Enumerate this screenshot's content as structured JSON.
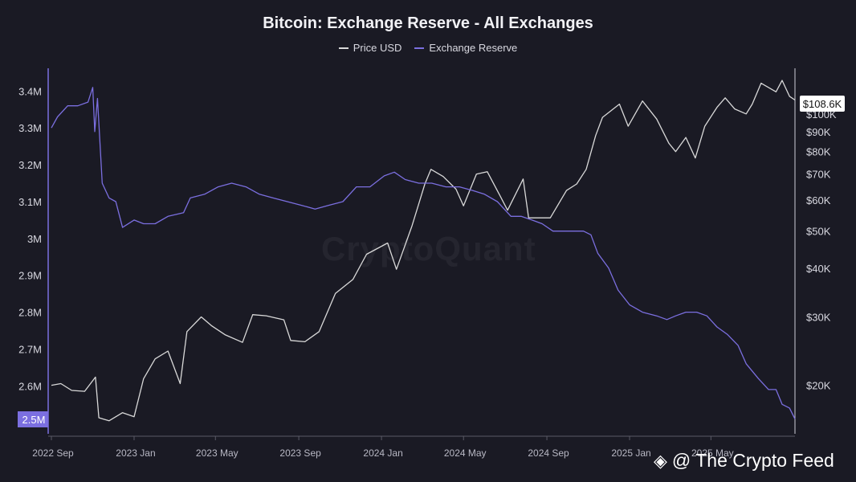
{
  "chart_data": {
    "type": "line",
    "title": "Bitcoin: Exchange Reserve - All Exchanges",
    "legend": {
      "placement": "top-center"
    },
    "colors": {
      "background": "#1a1a24",
      "price": "#d9d9d9",
      "reserve": "#7b6fe0"
    },
    "x_ticks": [
      "2022 Sep",
      "2023 Jan",
      "2023 May",
      "2023 Sep",
      "2024 Jan",
      "2024 May",
      "2024 Sep",
      "2025 Jan",
      "2025 May"
    ],
    "left_axis": {
      "ticks": [
        "3.4M",
        "3.3M",
        "3.2M",
        "3.1M",
        "3M",
        "2.9M",
        "2.8M",
        "2.7M",
        "2.6M"
      ],
      "range": [
        2.47,
        3.44
      ],
      "current_label": "2.5M"
    },
    "right_axis": {
      "scale": "log",
      "ticks": [
        "$100K",
        "$90K",
        "$80K",
        "$70K",
        "$60K",
        "$50K",
        "$40K",
        "$30K",
        "$20K"
      ],
      "range": [
        15000,
        125000
      ],
      "current_label": "$108.6K"
    },
    "series": [
      {
        "name": "Price USD",
        "axis": "right",
        "color": "#d9d9d9",
        "points": [
          [
            "2022-09-01",
            20000
          ],
          [
            "2022-09-15",
            20200
          ],
          [
            "2022-10-01",
            19400
          ],
          [
            "2022-10-20",
            19300
          ],
          [
            "2022-11-05",
            21000
          ],
          [
            "2022-11-10",
            16500
          ],
          [
            "2022-11-25",
            16200
          ],
          [
            "2022-12-15",
            17000
          ],
          [
            "2023-01-01",
            16600
          ],
          [
            "2023-01-15",
            20800
          ],
          [
            "2023-02-01",
            23400
          ],
          [
            "2023-02-20",
            24500
          ],
          [
            "2023-03-10",
            20200
          ],
          [
            "2023-03-20",
            27500
          ],
          [
            "2023-04-10",
            30000
          ],
          [
            "2023-04-25",
            28500
          ],
          [
            "2023-05-15",
            27000
          ],
          [
            "2023-06-10",
            25800
          ],
          [
            "2023-06-25",
            30400
          ],
          [
            "2023-07-15",
            30200
          ],
          [
            "2023-08-10",
            29500
          ],
          [
            "2023-08-20",
            26100
          ],
          [
            "2023-09-10",
            25900
          ],
          [
            "2023-10-01",
            27500
          ],
          [
            "2023-10-25",
            34500
          ],
          [
            "2023-11-20",
            37500
          ],
          [
            "2023-12-10",
            43500
          ],
          [
            "2024-01-10",
            46500
          ],
          [
            "2024-01-23",
            39800
          ],
          [
            "2024-02-15",
            51500
          ],
          [
            "2024-03-05",
            66000
          ],
          [
            "2024-03-14",
            72000
          ],
          [
            "2024-04-01",
            69000
          ],
          [
            "2024-04-20",
            64000
          ],
          [
            "2024-05-01",
            58000
          ],
          [
            "2024-05-20",
            70000
          ],
          [
            "2024-06-05",
            71000
          ],
          [
            "2024-06-25",
            61000
          ],
          [
            "2024-07-05",
            56500
          ],
          [
            "2024-07-28",
            68000
          ],
          [
            "2024-08-05",
            54000
          ],
          [
            "2024-09-06",
            54000
          ],
          [
            "2024-09-30",
            63500
          ],
          [
            "2024-10-15",
            66000
          ],
          [
            "2024-10-29",
            72000
          ],
          [
            "2024-11-12",
            88000
          ],
          [
            "2024-11-22",
            98000
          ],
          [
            "2024-12-17",
            106000
          ],
          [
            "2024-12-30",
            93000
          ],
          [
            "2025-01-20",
            108000
          ],
          [
            "2025-02-10",
            97000
          ],
          [
            "2025-02-28",
            84000
          ],
          [
            "2025-03-10",
            80000
          ],
          [
            "2025-03-25",
            87000
          ],
          [
            "2025-04-08",
            77000
          ],
          [
            "2025-04-22",
            93000
          ],
          [
            "2025-05-10",
            104000
          ],
          [
            "2025-05-22",
            110000
          ],
          [
            "2025-06-05",
            103000
          ],
          [
            "2025-06-22",
            100000
          ],
          [
            "2025-07-01",
            106000
          ],
          [
            "2025-07-14",
            120000
          ],
          [
            "2025-07-25",
            117000
          ],
          [
            "2025-08-05",
            114000
          ],
          [
            "2025-08-14",
            122000
          ],
          [
            "2025-08-25",
            111000
          ],
          [
            "2025-09-02",
            108600
          ]
        ]
      },
      {
        "name": "Exchange Reserve",
        "axis": "left",
        "color": "#7b6fe0",
        "points": [
          [
            "2022-09-01",
            3.3
          ],
          [
            "2022-09-10",
            3.33
          ],
          [
            "2022-09-25",
            3.36
          ],
          [
            "2022-10-10",
            3.36
          ],
          [
            "2022-10-25",
            3.37
          ],
          [
            "2022-11-01",
            3.41
          ],
          [
            "2022-11-04",
            3.29
          ],
          [
            "2022-11-08",
            3.38
          ],
          [
            "2022-11-15",
            3.15
          ],
          [
            "2022-11-25",
            3.11
          ],
          [
            "2022-12-05",
            3.1
          ],
          [
            "2022-12-15",
            3.03
          ],
          [
            "2023-01-01",
            3.05
          ],
          [
            "2023-01-15",
            3.04
          ],
          [
            "2023-02-01",
            3.04
          ],
          [
            "2023-02-20",
            3.06
          ],
          [
            "2023-03-15",
            3.07
          ],
          [
            "2023-03-25",
            3.11
          ],
          [
            "2023-04-15",
            3.12
          ],
          [
            "2023-05-05",
            3.14
          ],
          [
            "2023-05-25",
            3.15
          ],
          [
            "2023-06-15",
            3.14
          ],
          [
            "2023-07-05",
            3.12
          ],
          [
            "2023-07-25",
            3.11
          ],
          [
            "2023-08-15",
            3.1
          ],
          [
            "2023-09-05",
            3.09
          ],
          [
            "2023-09-25",
            3.08
          ],
          [
            "2023-10-15",
            3.09
          ],
          [
            "2023-11-05",
            3.1
          ],
          [
            "2023-11-25",
            3.14
          ],
          [
            "2023-12-15",
            3.14
          ],
          [
            "2024-01-05",
            3.17
          ],
          [
            "2024-01-20",
            3.18
          ],
          [
            "2024-02-05",
            3.16
          ],
          [
            "2024-02-25",
            3.15
          ],
          [
            "2024-03-15",
            3.15
          ],
          [
            "2024-04-05",
            3.14
          ],
          [
            "2024-04-25",
            3.14
          ],
          [
            "2024-05-15",
            3.13
          ],
          [
            "2024-06-01",
            3.12
          ],
          [
            "2024-06-20",
            3.1
          ],
          [
            "2024-07-10",
            3.06
          ],
          [
            "2024-07-25",
            3.06
          ],
          [
            "2024-08-10",
            3.05
          ],
          [
            "2024-08-25",
            3.04
          ],
          [
            "2024-09-10",
            3.02
          ],
          [
            "2024-09-25",
            3.02
          ],
          [
            "2024-10-10",
            3.02
          ],
          [
            "2024-10-25",
            3.02
          ],
          [
            "2024-11-05",
            3.01
          ],
          [
            "2024-11-15",
            2.96
          ],
          [
            "2024-12-01",
            2.92
          ],
          [
            "2024-12-15",
            2.86
          ],
          [
            "2025-01-01",
            2.82
          ],
          [
            "2025-01-20",
            2.8
          ],
          [
            "2025-02-10",
            2.79
          ],
          [
            "2025-02-25",
            2.78
          ],
          [
            "2025-03-10",
            2.79
          ],
          [
            "2025-03-25",
            2.8
          ],
          [
            "2025-04-10",
            2.8
          ],
          [
            "2025-04-25",
            2.79
          ],
          [
            "2025-05-10",
            2.76
          ],
          [
            "2025-05-25",
            2.74
          ],
          [
            "2025-06-10",
            2.71
          ],
          [
            "2025-06-22",
            2.66
          ],
          [
            "2025-07-10",
            2.62
          ],
          [
            "2025-07-25",
            2.59
          ],
          [
            "2025-08-05",
            2.59
          ],
          [
            "2025-08-14",
            2.55
          ],
          [
            "2025-08-25",
            2.54
          ],
          [
            "2025-09-02",
            2.51
          ]
        ]
      }
    ]
  },
  "watermark": "CryptoQuant",
  "brand": {
    "text": "@ The Crypto Feed",
    "icon": "binance-diamond-icon"
  }
}
